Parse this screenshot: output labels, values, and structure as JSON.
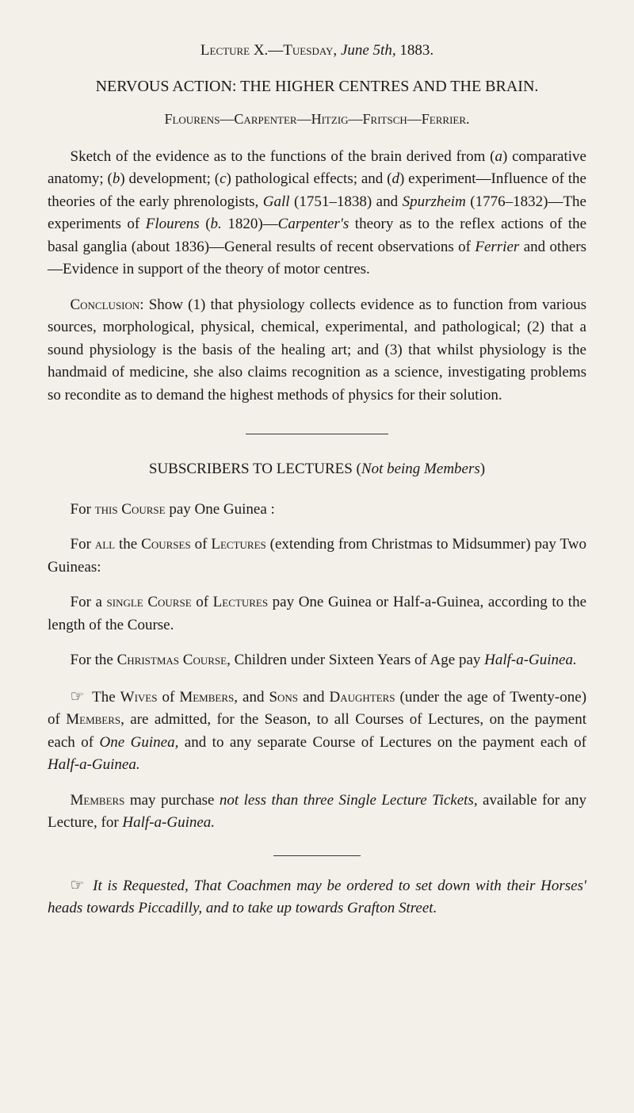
{
  "header": {
    "lecture": "Lecture X.",
    "day": "—Tuesday,",
    "date_italic": "June 5th,",
    "year": " 1883."
  },
  "title": "NERVOUS ACTION: THE HIGHER CENTRES AND THE BRAIN.",
  "names": "Flourens—Carpenter—Hitzig—Fritsch—Ferrier.",
  "para1_a": "Sketch of the evidence as to the functions of the brain derived from (",
  "para1_a_it": "a",
  "para1_b": ") comparative anatomy; (",
  "para1_b_it": "b",
  "para1_c": ") development; (",
  "para1_c_it": "c",
  "para1_d": ") pathological effects; and (",
  "para1_d_it": "d",
  "para1_e": ") experiment—Influence of the theories of the early phrenologists, ",
  "para1_gall": "Gall",
  "para1_f": " (1751–1838) and ",
  "para1_spurz": "Spurzheim",
  "para1_g": " (1776–1832)—The experiments of ",
  "para1_flour": "Flourens",
  "para1_h": " (",
  "para1_h_it": "b.",
  "para1_i": " 1820)—",
  "para1_carp": "Carpenter's",
  "para1_j": " theory as to the reflex actions of the basal ganglia (about 1836)—General results of recent observations of ",
  "para1_ferr": "Ferrier",
  "para1_k": " and others—Evidence in support of the theory of motor centres.",
  "para2_a": "Conclusion",
  "para2_b": ": Show (1) that physiology collects evidence as to function from various sources, morphological, physical, chemical, experimental, and pathological; (2) that a sound physiology is the basis of the healing art; and (3) that whilst physiology is the handmaid of medicine, she also claims recognition as a science, investigating problems so recondite as to demand the highest methods of physics for their solution.",
  "sub_title_a": "SUBSCRIBERS TO LECTURES (",
  "sub_title_it": "Not being Members",
  "sub_title_b": ")",
  "p3_a": "For ",
  "p3_sc": "this Course",
  "p3_b": " pay One Guinea :",
  "p4_a": "For ",
  "p4_sc1": "all",
  "p4_b": " the ",
  "p4_sc2": "Courses",
  "p4_c": " of ",
  "p4_sc3": "Lectures",
  "p4_d": " (extending from Christmas to Midsummer) pay Two Guineas:",
  "p5_a": "For a ",
  "p5_sc1": "single Course",
  "p5_b": " of ",
  "p5_sc2": "Lectures",
  "p5_c": " pay One Guinea or Half-a-Guinea, according to the length of the Course.",
  "p6_a": "For the ",
  "p6_sc": "Christmas Course",
  "p6_b": ", Children under Sixteen Years of Age pay ",
  "p6_it": "Half-a-Guinea.",
  "p7_ptr": "☞",
  "p7_a": " The ",
  "p7_sc1": "Wives",
  "p7_b": " of ",
  "p7_sc2": "Members",
  "p7_c": ", and ",
  "p7_sc3": "Sons",
  "p7_d": " and ",
  "p7_sc4": "Daughters",
  "p7_e": " (under the age of Twenty-one) of ",
  "p7_sc5": "Members",
  "p7_f": ", are admitted, for the Season, to all Courses of Lectures, on the payment each of ",
  "p7_it1": "One Guinea,",
  "p7_g": " and to any separate Course of Lectures on the payment each of ",
  "p7_it2": "Half-a-Guinea.",
  "p8_sc": "Members",
  "p8_a": " may purchase ",
  "p8_it1": "not less than three Single Lecture Tickets,",
  "p8_b": " available for any Lecture, for ",
  "p8_it2": "Half-a-Guinea.",
  "p9_ptr": "☞",
  "p9_it1": " It is Requested, That Coachmen may be ordered to set down with their Horses' heads towards Piccadilly, and to take up towards Grafton Street."
}
